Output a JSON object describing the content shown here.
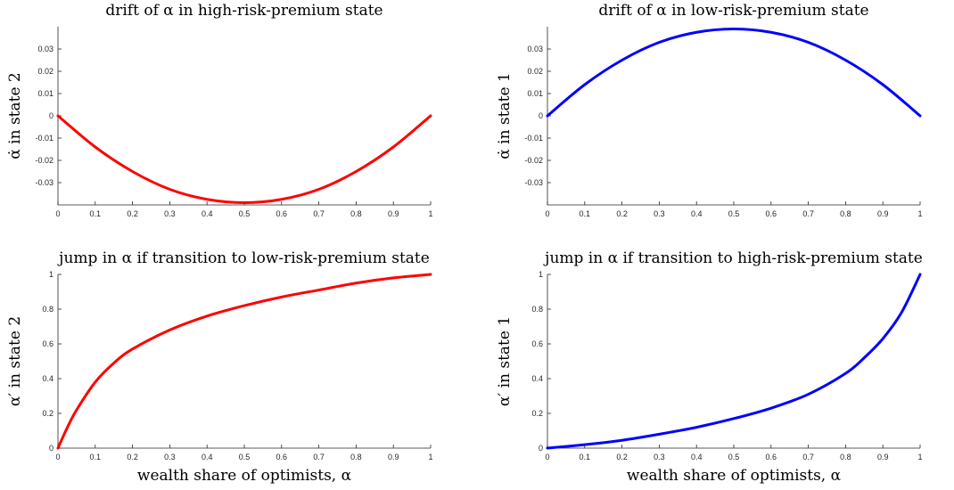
{
  "chart_data": [
    {
      "type": "line",
      "title": "drift of α in high-risk-premium state",
      "ylabel": "α̇ in state 2",
      "xlabel": "",
      "xlim": [
        0,
        1
      ],
      "ylim": [
        -0.04,
        0.04
      ],
      "xticks": [
        "0",
        "0.1",
        "0.2",
        "0.3",
        "0.4",
        "0.5",
        "0.6",
        "0.7",
        "0.8",
        "0.9",
        "1"
      ],
      "yticks": [
        "-0.03",
        "-0.02",
        "-0.01",
        "0",
        "0.01",
        "0.02",
        "0.03"
      ],
      "grid": false,
      "color": "#ff0000",
      "x": [
        0,
        0.1,
        0.2,
        0.3,
        0.4,
        0.5,
        0.6,
        0.7,
        0.8,
        0.9,
        1.0
      ],
      "y": [
        0,
        -0.014,
        -0.025,
        -0.033,
        -0.0375,
        -0.039,
        -0.0375,
        -0.033,
        -0.025,
        -0.014,
        0
      ]
    },
    {
      "type": "line",
      "title": "drift of α in low-risk-premium state",
      "ylabel": "α̇ in state 1",
      "xlabel": "",
      "xlim": [
        0,
        1
      ],
      "ylim": [
        -0.04,
        0.04
      ],
      "xticks": [
        "0",
        "0.1",
        "0.2",
        "0.3",
        "0.4",
        "0.5",
        "0.6",
        "0.7",
        "0.8",
        "0.9",
        "1"
      ],
      "yticks": [
        "-0.03",
        "-0.02",
        "-0.01",
        "0",
        "0.01",
        "0.02",
        "0.03"
      ],
      "grid": false,
      "color": "#0000ff",
      "x": [
        0,
        0.1,
        0.2,
        0.3,
        0.4,
        0.5,
        0.6,
        0.7,
        0.8,
        0.9,
        1.0
      ],
      "y": [
        0,
        0.014,
        0.025,
        0.033,
        0.0375,
        0.039,
        0.0375,
        0.033,
        0.025,
        0.014,
        0
      ]
    },
    {
      "type": "line",
      "title": "jump in α if transition to low-risk-premium state",
      "ylabel": "α′ in state 2",
      "xlabel": "wealth share of optimists, α",
      "xlim": [
        0,
        1
      ],
      "ylim": [
        0,
        1
      ],
      "xticks": [
        "0",
        "0.1",
        "0.2",
        "0.3",
        "0.4",
        "0.5",
        "0.6",
        "0.7",
        "0.8",
        "0.9",
        "1"
      ],
      "yticks": [
        "0",
        "0.2",
        "0.4",
        "0.6",
        "0.8",
        "1"
      ],
      "grid": false,
      "color": "#ff0000",
      "x": [
        0,
        0.025,
        0.05,
        0.1,
        0.15,
        0.2,
        0.3,
        0.4,
        0.5,
        0.6,
        0.7,
        0.8,
        0.9,
        1.0
      ],
      "y": [
        0,
        0.118,
        0.22,
        0.38,
        0.49,
        0.57,
        0.68,
        0.76,
        0.82,
        0.87,
        0.91,
        0.95,
        0.98,
        1.0
      ]
    },
    {
      "type": "line",
      "title": "jump in α if transition to high-risk-premium state",
      "ylabel": "α′ in state 1",
      "xlabel": "wealth share of optimists, α",
      "xlim": [
        0,
        1
      ],
      "ylim": [
        0,
        1
      ],
      "xticks": [
        "0",
        "0.1",
        "0.2",
        "0.3",
        "0.4",
        "0.5",
        "0.6",
        "0.7",
        "0.8",
        "0.9",
        "1"
      ],
      "yticks": [
        "0",
        "0.2",
        "0.4",
        "0.6",
        "0.8",
        "1"
      ],
      "grid": false,
      "color": "#0000ff",
      "x": [
        0,
        0.1,
        0.2,
        0.3,
        0.4,
        0.5,
        0.6,
        0.7,
        0.8,
        0.85,
        0.9,
        0.95,
        1.0
      ],
      "y": [
        0,
        0.02,
        0.045,
        0.08,
        0.12,
        0.17,
        0.23,
        0.31,
        0.43,
        0.52,
        0.63,
        0.78,
        1.0
      ]
    }
  ]
}
